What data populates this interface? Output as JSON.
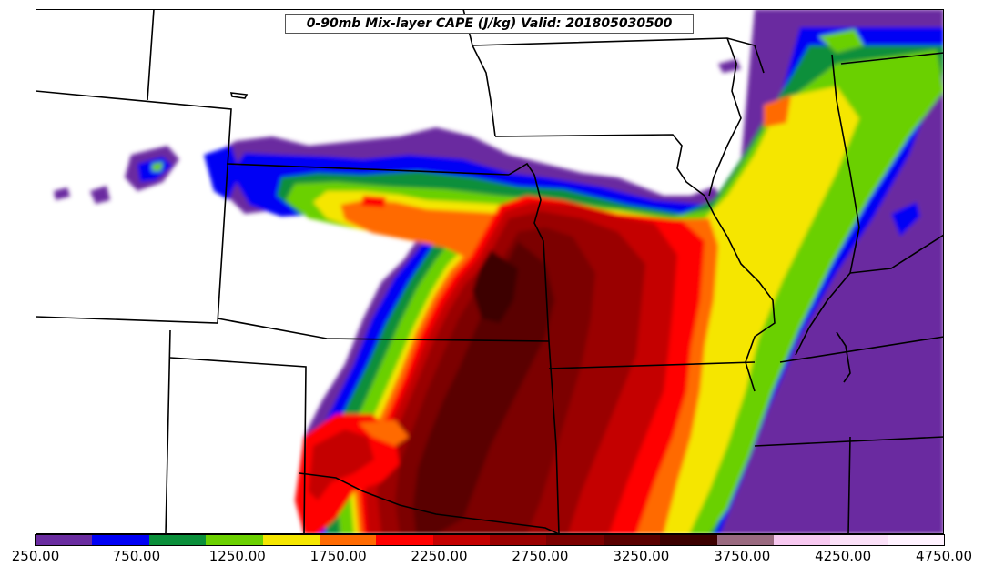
{
  "title": "0-90mb Mix-layer CAPE (J/kg) Valid: 201805030500",
  "colorbar": {
    "colors": [
      "#6a2ca0",
      "#0000f5",
      "#0a8f3a",
      "#6bd000",
      "#f5e600",
      "#ff6a00",
      "#ff0000",
      "#c40000",
      "#9a0000",
      "#7c0000",
      "#5a0000",
      "#3c0000",
      "#9a6a80",
      "#f7c8f0",
      "#fbe0f8",
      "#fff2ff"
    ],
    "tick_labels": [
      "250.00",
      "750.00",
      "1250.00",
      "1750.00",
      "2250.00",
      "2750.00",
      "3250.00",
      "3750.00",
      "4250.00",
      "4750.00"
    ]
  }
}
